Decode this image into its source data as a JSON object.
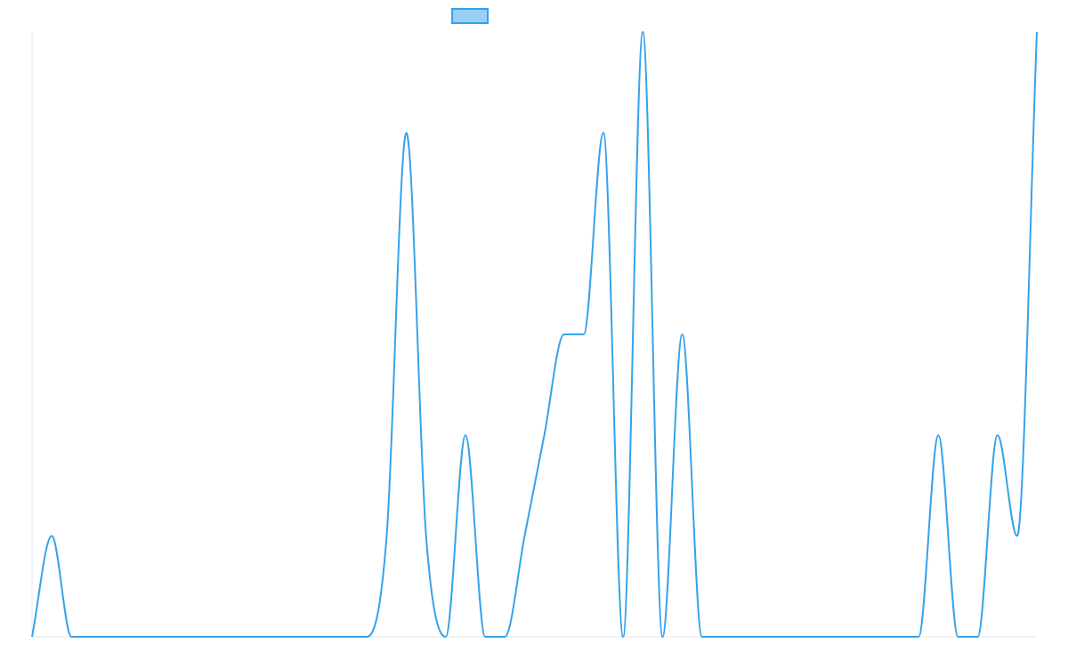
{
  "chart_data": {
    "type": "line",
    "title": "",
    "xlabel": "",
    "ylabel": "",
    "x": [
      0,
      1,
      2,
      3,
      4,
      5,
      6,
      7,
      8,
      9,
      10,
      11,
      12,
      13,
      14,
      15,
      16,
      17,
      18,
      19,
      20,
      21,
      22,
      23,
      24,
      25,
      26,
      27,
      28,
      29,
      30,
      31,
      32,
      33,
      34,
      35,
      36,
      37,
      38,
      39,
      40,
      41,
      42,
      43,
      44,
      45,
      46,
      47,
      48,
      49,
      50,
      51
    ],
    "xlim": [
      0,
      51
    ],
    "ylim": [
      0,
      6
    ],
    "grid": false,
    "legend": {
      "position": "top-center",
      "show_label": false
    },
    "series": [
      {
        "color": "#36a2eb",
        "fill": "#9ad0f5",
        "values": [
          0,
          1,
          0,
          0,
          0,
          0,
          0,
          0,
          0,
          0,
          0,
          0,
          0,
          0,
          0,
          0,
          0,
          0,
          1,
          5,
          1,
          0,
          2,
          0,
          0,
          1,
          2,
          3,
          3,
          5,
          0,
          6,
          0,
          3,
          0,
          0,
          0,
          0,
          0,
          0,
          0,
          0,
          0,
          0,
          0,
          0,
          2,
          0,
          0,
          2,
          1,
          6
        ]
      }
    ]
  }
}
